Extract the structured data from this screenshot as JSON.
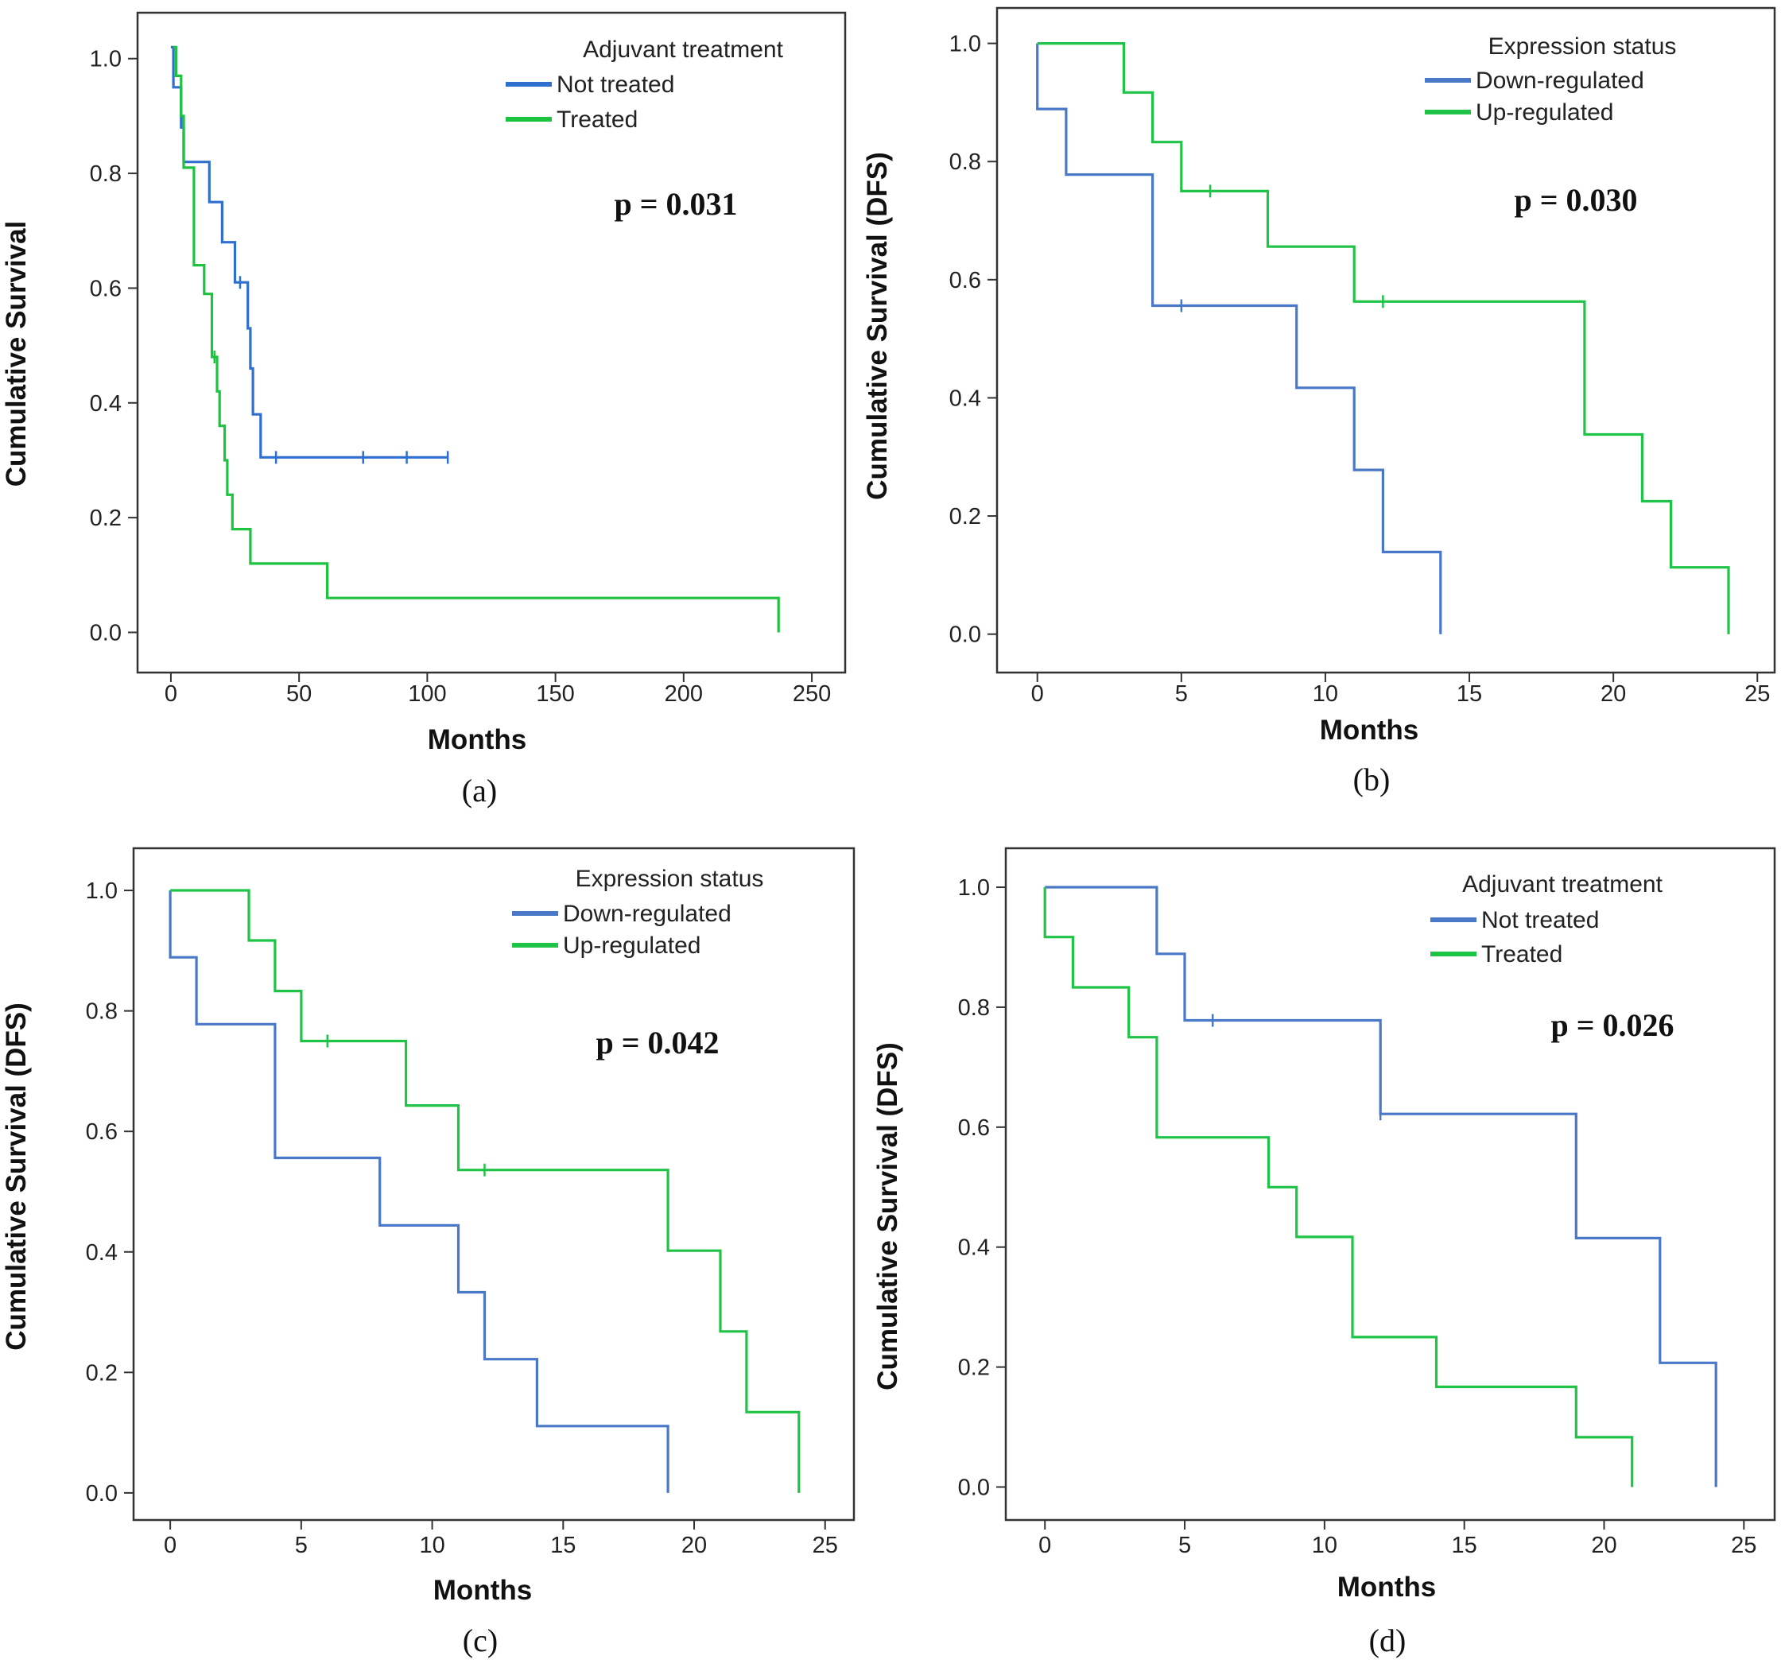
{
  "chart_data": [
    {
      "type": "line",
      "subtype": "kaplan-meier",
      "panel_label": "(a)",
      "xlabel": "Months",
      "ylabel": "Cumulative Survival",
      "xlim": [
        -13,
        263
      ],
      "ylim": [
        -0.07,
        1.08
      ],
      "xticks": [
        0,
        50,
        100,
        150,
        200,
        250
      ],
      "yticks": [
        "0.0",
        "0.2",
        "0.4",
        "0.6",
        "0.8",
        "1.0"
      ],
      "ytick_values": [
        0,
        0.2,
        0.4,
        0.6,
        0.8,
        1.0
      ],
      "legend_title": "Adjuvant  treatment",
      "p_value": "p = 0.031",
      "series": [
        {
          "name": "Not treated",
          "color": "#2f6fd0",
          "steps": [
            [
              0,
              1.02
            ],
            [
              1,
              0.95
            ],
            [
              4,
              0.88
            ],
            [
              5,
              0.82
            ],
            [
              15,
              0.75
            ],
            [
              20,
              0.68
            ],
            [
              25,
              0.61
            ],
            [
              28,
              0.61
            ],
            [
              30,
              0.53
            ],
            [
              31,
              0.46
            ],
            [
              32,
              0.38
            ],
            [
              35,
              0.305
            ],
            [
              108,
              0.305
            ]
          ],
          "censor": [
            [
              27,
              0.61
            ],
            [
              41,
              0.305
            ],
            [
              75,
              0.305
            ],
            [
              92,
              0.305
            ],
            [
              108,
              0.305
            ]
          ]
        },
        {
          "name": "Treated",
          "color": "#1dc23f",
          "steps": [
            [
              1,
              1.02
            ],
            [
              2,
              0.97
            ],
            [
              4,
              0.9
            ],
            [
              5,
              0.81
            ],
            [
              7,
              0.81
            ],
            [
              9,
              0.64
            ],
            [
              12,
              0.64
            ],
            [
              13,
              0.59
            ],
            [
              15,
              0.59
            ],
            [
              16,
              0.48
            ],
            [
              18,
              0.42
            ],
            [
              19,
              0.36
            ],
            [
              21,
              0.3
            ],
            [
              22,
              0.24
            ],
            [
              24,
              0.18
            ],
            [
              31,
              0.12
            ],
            [
              61,
              0.06
            ],
            [
              237,
              0.06
            ],
            [
              237,
              0.0
            ]
          ],
          "censor": [
            [
              17,
              0.48
            ]
          ]
        }
      ]
    },
    {
      "type": "line",
      "subtype": "kaplan-meier",
      "panel_label": "(b)",
      "xlabel": "Months",
      "ylabel": "Cumulative Survival (DFS)",
      "xlim": [
        -1.4,
        25.6
      ],
      "ylim": [
        -0.065,
        1.06
      ],
      "xticks": [
        0,
        5,
        10,
        15,
        20,
        25
      ],
      "yticks": [
        "0.0",
        "0.2",
        "0.4",
        "0.6",
        "0.8",
        "1.0"
      ],
      "ytick_values": [
        0,
        0.2,
        0.4,
        0.6,
        0.8,
        1.0
      ],
      "legend_title": "Expression status",
      "p_value": "p = 0.030",
      "series": [
        {
          "name": "Down-regulated",
          "color": "#4a78c8",
          "steps": [
            [
              0,
              1.0
            ],
            [
              0,
              0.889
            ],
            [
              1,
              0.778
            ],
            [
              4,
              0.556
            ],
            [
              9,
              0.417
            ],
            [
              11,
              0.278
            ],
            [
              12,
              0.139
            ],
            [
              14,
              0.139
            ],
            [
              14,
              0.0
            ]
          ],
          "censor": [
            [
              5,
              0.556
            ]
          ]
        },
        {
          "name": "Up-regulated",
          "color": "#1fc447",
          "steps": [
            [
              0,
              1.0
            ],
            [
              3,
              0.917
            ],
            [
              4,
              0.833
            ],
            [
              5,
              0.75
            ],
            [
              8,
              0.656
            ],
            [
              11,
              0.563
            ],
            [
              19,
              0.338
            ],
            [
              21,
              0.225
            ],
            [
              22,
              0.113
            ],
            [
              24,
              0.113
            ],
            [
              24,
              0.0
            ]
          ],
          "censor": [
            [
              6,
              0.75
            ],
            [
              12,
              0.563
            ]
          ]
        }
      ]
    },
    {
      "type": "line",
      "subtype": "kaplan-meier",
      "panel_label": "(c)",
      "xlabel": "Months",
      "ylabel": "Cumulative Survival (DFS)",
      "xlim": [
        -1.4,
        26.1
      ],
      "ylim": [
        -0.045,
        1.07
      ],
      "xticks": [
        0,
        5,
        10,
        15,
        20,
        25
      ],
      "yticks": [
        "0.0",
        "0.2",
        "0.4",
        "0.6",
        "0.8",
        "1.0"
      ],
      "ytick_values": [
        0,
        0.2,
        0.4,
        0.6,
        0.8,
        1.0
      ],
      "legend_title": "Expression status",
      "p_value": "p = 0.042",
      "series": [
        {
          "name": "Down-regulated",
          "color": "#4a78c8",
          "steps": [
            [
              0,
              1.0
            ],
            [
              0,
              0.889
            ],
            [
              1,
              0.778
            ],
            [
              4,
              0.556
            ],
            [
              8,
              0.444
            ],
            [
              11,
              0.333
            ],
            [
              12,
              0.222
            ],
            [
              14,
              0.111
            ],
            [
              19,
              0.111
            ],
            [
              19,
              0.0
            ]
          ],
          "censor": []
        },
        {
          "name": "Up-regulated",
          "color": "#1fc447",
          "steps": [
            [
              0,
              1.0
            ],
            [
              3,
              0.917
            ],
            [
              4,
              0.833
            ],
            [
              5,
              0.75
            ],
            [
              9,
              0.643
            ],
            [
              11,
              0.536
            ],
            [
              19,
              0.402
            ],
            [
              21,
              0.268
            ],
            [
              22,
              0.134
            ],
            [
              24,
              0.134
            ],
            [
              24,
              0.0
            ]
          ],
          "censor": [
            [
              6,
              0.75
            ],
            [
              12,
              0.536
            ]
          ]
        }
      ]
    },
    {
      "type": "line",
      "subtype": "kaplan-meier",
      "panel_label": "(d)",
      "xlabel": "Months",
      "ylabel": "Cumulative Survival (DFS)",
      "xlim": [
        -1.4,
        26.1
      ],
      "ylim": [
        -0.055,
        1.065
      ],
      "xticks": [
        0,
        5,
        10,
        15,
        20,
        25
      ],
      "yticks": [
        "0.0",
        "0.2",
        "0.4",
        "0.6",
        "0.8",
        "1.0"
      ],
      "ytick_values": [
        0,
        0.2,
        0.4,
        0.6,
        0.8,
        1.0
      ],
      "legend_title": "Adjuvant  treatment",
      "p_value": "p = 0.026",
      "series": [
        {
          "name": "Not treated",
          "color": "#4a78c8",
          "steps": [
            [
              0,
              1.0
            ],
            [
              4,
              0.889
            ],
            [
              5,
              0.778
            ],
            [
              12,
              0.622
            ],
            [
              19,
              0.415
            ],
            [
              22,
              0.207
            ],
            [
              24,
              0.207
            ],
            [
              24,
              0.0
            ]
          ],
          "censor": [
            [
              6,
              0.778
            ],
            [
              12,
              0.622
            ]
          ]
        },
        {
          "name": "Treated",
          "color": "#1fc447",
          "steps": [
            [
              0,
              1.0
            ],
            [
              0,
              0.917
            ],
            [
              1,
              0.833
            ],
            [
              3,
              0.75
            ],
            [
              4,
              0.583
            ],
            [
              8,
              0.5
            ],
            [
              9,
              0.417
            ],
            [
              11,
              0.25
            ],
            [
              14,
              0.167
            ],
            [
              19,
              0.083
            ],
            [
              21,
              0.083
            ],
            [
              21,
              0.0
            ]
          ],
          "censor": []
        }
      ]
    }
  ]
}
